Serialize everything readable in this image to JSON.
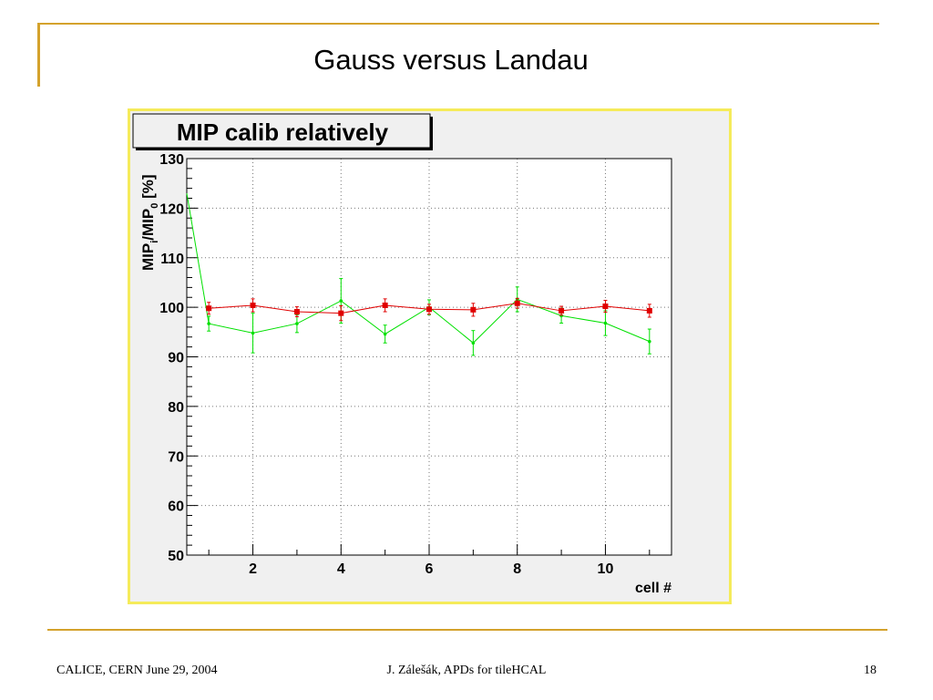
{
  "slide": {
    "title": "Gauss versus Landau",
    "footer_left": "CALICE, CERN June 29, 2004",
    "footer_center": "J. Zálešák, APDs for tileHCAL",
    "footer_right": "18"
  },
  "colors": {
    "accent": "#d4a22c",
    "frame": "#f5eb5a",
    "canvas": "#f0f0f0",
    "series_red": "#e00000",
    "series_green": "#00e000"
  },
  "chart_data": {
    "type": "line",
    "title": "MIP calib relatively",
    "xlabel": "cell #",
    "ylabel_parts": [
      "MIP",
      "i",
      "/MIP",
      "0",
      " [%]"
    ],
    "xlim": [
      0.5,
      11.5
    ],
    "ylim": [
      50,
      130
    ],
    "xticks": [
      2,
      4,
      6,
      8,
      10
    ],
    "yticks": [
      50,
      60,
      70,
      80,
      90,
      100,
      110,
      120,
      130
    ],
    "grid": true,
    "series": [
      {
        "marker": "square",
        "color": "#e00000",
        "x": [
          1,
          2,
          3,
          4,
          5,
          6,
          7,
          8,
          9,
          10,
          11
        ],
        "y": [
          99.8,
          100.4,
          99.1,
          98.8,
          100.4,
          99.6,
          99.5,
          100.8,
          99.3,
          100.2,
          99.3
        ],
        "err": [
          1.2,
          1.3,
          1.0,
          1.5,
          1.3,
          1.0,
          1.3,
          1.0,
          0.9,
          1.2,
          1.3
        ]
      },
      {
        "marker": "dot",
        "color": "#00e000",
        "x": [
          0.5,
          1,
          2,
          3,
          4,
          5,
          6,
          7,
          8,
          9,
          10,
          11
        ],
        "y": [
          123,
          96.7,
          94.8,
          96.7,
          101.3,
          94.6,
          100.0,
          92.8,
          101.6,
          98.3,
          96.8,
          93.1
        ],
        "err": [
          0,
          1.5,
          4.0,
          1.8,
          4.5,
          1.8,
          1.5,
          2.5,
          2.5,
          1.5,
          2.5,
          2.5
        ]
      }
    ]
  }
}
